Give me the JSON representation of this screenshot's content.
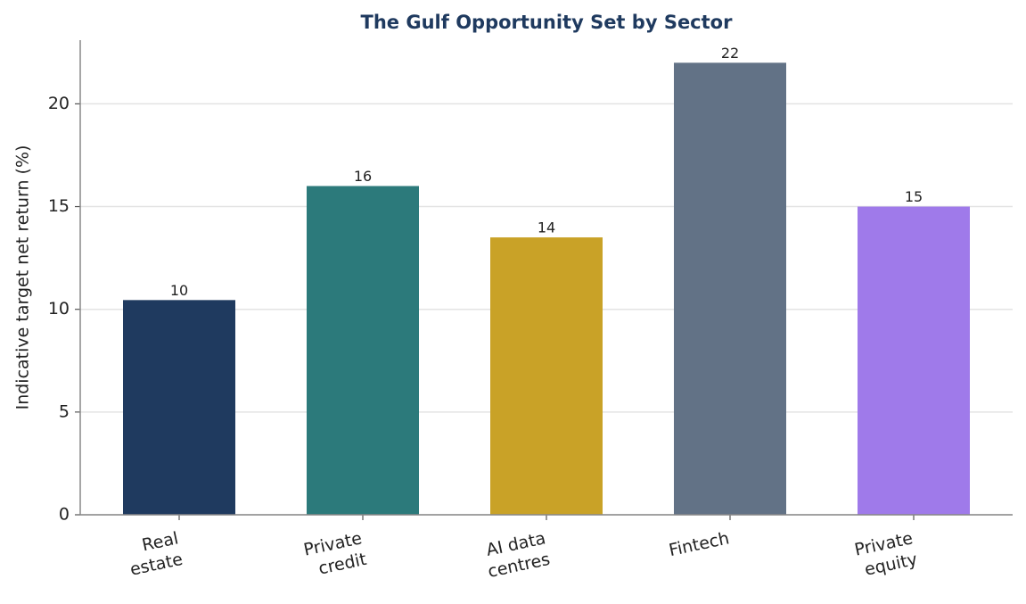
{
  "chart_data": {
    "type": "bar",
    "title": "The Gulf Opportunity Set by Sector",
    "ylabel": "Indicative target net return (%)",
    "categories": [
      [
        "Real",
        "estate"
      ],
      [
        "Private",
        "credit"
      ],
      [
        "AI data",
        "centres"
      ],
      [
        "Fintech"
      ],
      [
        "Private",
        "equity"
      ]
    ],
    "values": [
      10.45,
      16,
      13.5,
      22,
      15
    ],
    "value_labels": [
      "10",
      "16",
      "14",
      "22",
      "15"
    ],
    "colors": [
      "#1f3a5f",
      "#2c7a7b",
      "#c9a227",
      "#627286",
      "#9f7aea"
    ],
    "ylim": [
      0,
      23.1
    ],
    "yticks": [
      0,
      5,
      10,
      15,
      20
    ],
    "grid": true
  }
}
